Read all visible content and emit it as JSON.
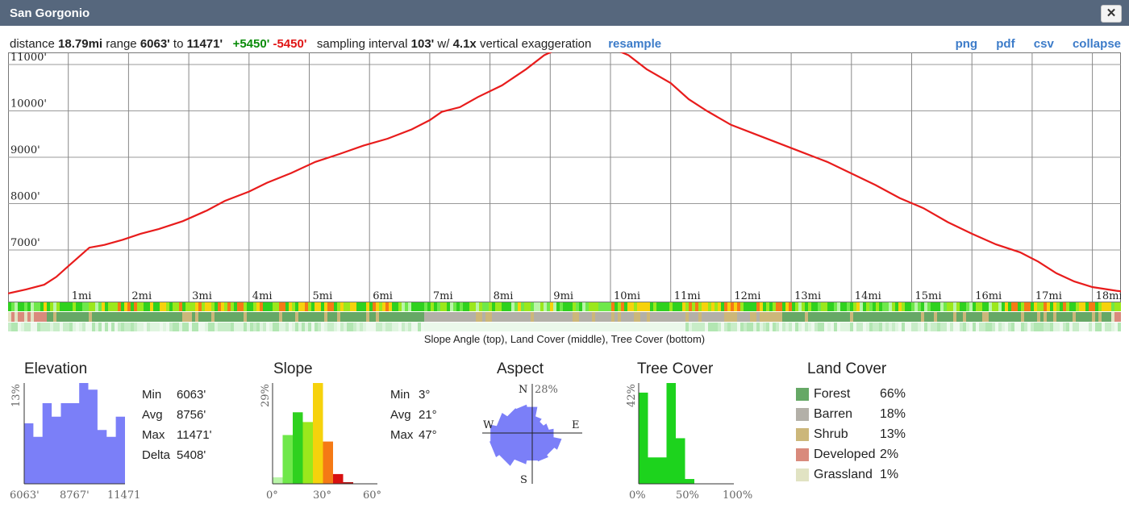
{
  "window": {
    "title": "San Gorgonio",
    "close_label": "✕"
  },
  "info": {
    "distance_label": "distance",
    "distance": "18.79mi",
    "range_label": "range",
    "range_min": "6063'",
    "range_to": "to",
    "range_max": "11471'",
    "gain": "+5450'",
    "loss": "-5450'",
    "interval_label": "sampling interval",
    "interval": "103'",
    "with_label": "w/",
    "exaggeration": "4.1x",
    "exaggeration_label": "vertical exaggeration",
    "resample": "resample"
  },
  "exports": {
    "png": "png",
    "pdf": "pdf",
    "csv": "csv",
    "collapse": "collapse"
  },
  "profile": {
    "elev_labels": [
      "11000'",
      "10000'",
      "9000'",
      "8000'",
      "7000'"
    ],
    "mile_labels": [
      "1mi",
      "2mi",
      "3mi",
      "4mi",
      "5mi",
      "6mi",
      "7mi",
      "8mi",
      "9mi",
      "10mi",
      "11mi",
      "12mi",
      "13mi",
      "14mi",
      "15mi",
      "16mi",
      "17mi",
      "18mi"
    ],
    "line_color": "#e81c1c",
    "caption": "Slope Angle (top), Land Cover (middle), Tree Cover (bottom)"
  },
  "elevation": {
    "title": "Elevation",
    "y_label": "13%",
    "x_labels": [
      "6063'",
      "8767'",
      "11471"
    ],
    "bar_color": "#7b7ff8",
    "bars": [
      9,
      7,
      12,
      10,
      12,
      12,
      15,
      14,
      8,
      7,
      10
    ],
    "stats": [
      {
        "k": "Min",
        "v": "6063'"
      },
      {
        "k": "Avg",
        "v": "8756'"
      },
      {
        "k": "Max",
        "v": "11471'"
      },
      {
        "k": "Delta",
        "v": "5408'"
      }
    ]
  },
  "slope": {
    "title": "Slope",
    "y_label": "29%",
    "x_labels": [
      "0°",
      "30°",
      "60°"
    ],
    "bars": [
      {
        "v": 2,
        "c": "#b9f5a8"
      },
      {
        "v": 15,
        "c": "#6fe84a"
      },
      {
        "v": 22,
        "c": "#2fd11f"
      },
      {
        "v": 19,
        "c": "#9be81c"
      },
      {
        "v": 31,
        "c": "#f6d20c"
      },
      {
        "v": 13,
        "c": "#f57a15"
      },
      {
        "v": 3,
        "c": "#d81010"
      },
      {
        "v": 0.5,
        "c": "#b01010"
      }
    ],
    "stats": [
      {
        "k": "Min",
        "v": "3°"
      },
      {
        "k": "Avg",
        "v": "21°"
      },
      {
        "k": "Max",
        "v": "47°"
      }
    ]
  },
  "aspect": {
    "title": "Aspect",
    "percent_label": "28%",
    "N": "N",
    "E": "E",
    "S": "S",
    "W": "W",
    "fill": "#7b7ff8",
    "sectors": [
      0.55,
      0.35,
      0.28,
      0.35,
      0.45,
      0.62,
      0.55,
      0.6,
      0.58,
      0.66,
      0.82,
      0.9,
      0.88,
      0.75,
      0.62,
      0.6
    ]
  },
  "tree_cover": {
    "title": "Tree Cover",
    "y_label": "42%",
    "x_labels": [
      "0%",
      "50%",
      "100%"
    ],
    "bar_color": "#1dd31d",
    "bars": [
      38,
      11,
      11,
      42,
      19,
      2,
      0,
      0,
      0,
      0
    ]
  },
  "land_cover": {
    "title": "Land Cover",
    "items": [
      {
        "label": "Forest",
        "pct": "66%",
        "color": "#66a866"
      },
      {
        "label": "Barren",
        "pct": "18%",
        "color": "#b3b0a8"
      },
      {
        "label": "Shrub",
        "pct": "13%",
        "color": "#ccb77a"
      },
      {
        "label": "Developed",
        "pct": "2%",
        "color": "#d98a7c"
      },
      {
        "label": "Grassland",
        "pct": "1%",
        "color": "#e1e3c3"
      }
    ]
  }
}
